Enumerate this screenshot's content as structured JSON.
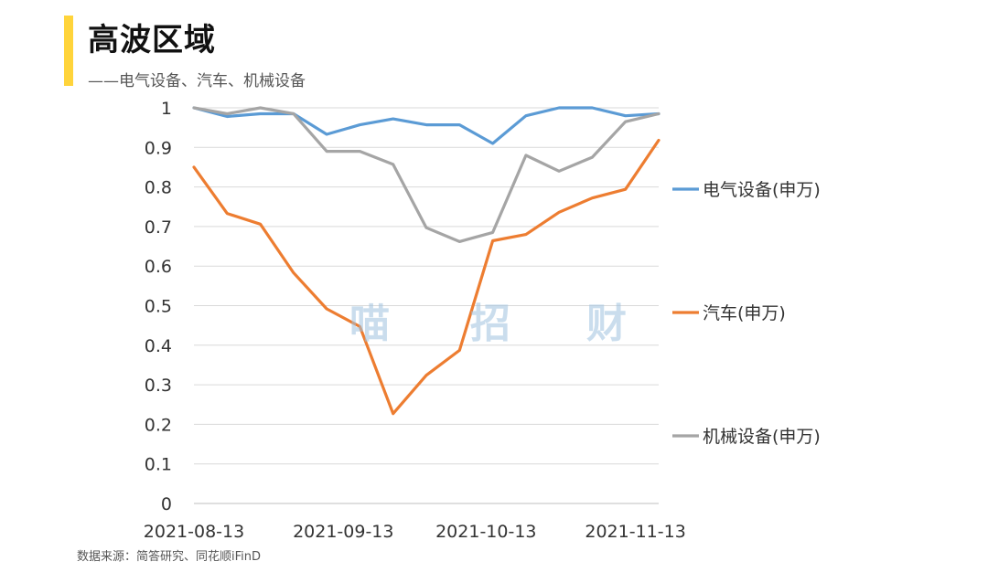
{
  "header": {
    "title": "高波区域",
    "subtitle": "——电气设备、汽车、机械设备"
  },
  "footer": {
    "source": "数据来源：简答研究、同花顺iFinD"
  },
  "watermark": [
    "喵",
    "招",
    "财"
  ],
  "chart_data": {
    "type": "line",
    "title": "",
    "xlabel": "",
    "ylabel": "",
    "ylim": [
      0,
      1
    ],
    "yticks": [
      "0",
      "0.1",
      "0.2",
      "0.3",
      "0.4",
      "0.5",
      "0.6",
      "0.7",
      "0.8",
      "0.9",
      "1"
    ],
    "x": [
      "2021-08-13",
      "2021-08-20",
      "2021-08-27",
      "2021-09-03",
      "2021-09-10",
      "2021-09-17",
      "2021-09-24",
      "2021-09-30",
      "2021-10-08",
      "2021-10-15",
      "2021-10-22",
      "2021-10-29",
      "2021-11-05",
      "2021-11-12",
      "2021-11-19"
    ],
    "xtick_labels": [
      {
        "index": 0,
        "label": "2021-08-13"
      },
      {
        "index": 4.5,
        "label": "2021-09-13"
      },
      {
        "index": 8.8,
        "label": "2021-10-13"
      },
      {
        "index": 13.3,
        "label": "2021-11-13"
      }
    ],
    "grid": true,
    "legend_position": "right",
    "series": [
      {
        "name": "电气设备(申万)",
        "color": "#5B9BD5",
        "values": [
          1.0,
          0.978,
          0.985,
          0.985,
          0.933,
          0.957,
          0.972,
          0.957,
          0.957,
          0.91,
          0.98,
          1.0,
          1.0,
          0.98,
          0.985
        ]
      },
      {
        "name": "汽车(申万)",
        "color": "#ED7D31",
        "values": [
          0.85,
          0.733,
          0.706,
          0.583,
          0.492,
          0.447,
          0.227,
          0.324,
          0.387,
          0.664,
          0.68,
          0.736,
          0.772,
          0.794,
          0.918
        ]
      },
      {
        "name": "机械设备(申万)",
        "color": "#A5A5A5",
        "values": [
          1.0,
          0.985,
          1.0,
          0.985,
          0.89,
          0.89,
          0.857,
          0.697,
          0.662,
          0.685,
          0.88,
          0.84,
          0.875,
          0.965,
          0.985
        ]
      }
    ]
  }
}
